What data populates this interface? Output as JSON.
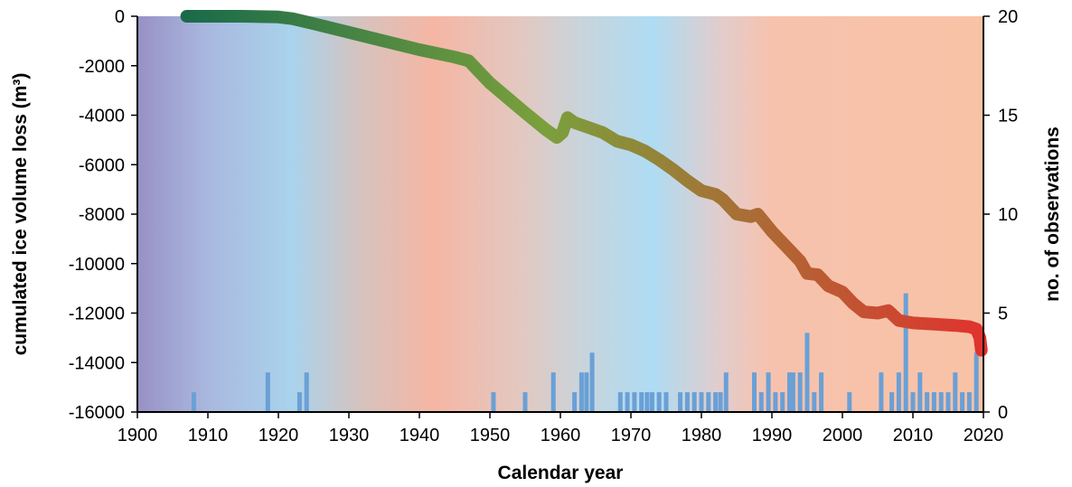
{
  "chart_data": {
    "type": "line",
    "title": "",
    "xlabel": "Calendar year",
    "ylabel": "cumulated ice volume loss (m³)",
    "y2label": "no. of observations",
    "xlim": [
      1900,
      2020
    ],
    "ylim": [
      -16000,
      0
    ],
    "y2lim": [
      0,
      20
    ],
    "xticks": [
      1900,
      1910,
      1920,
      1930,
      1940,
      1950,
      1960,
      1970,
      1980,
      1990,
      2000,
      2010,
      2020
    ],
    "yticks": [
      0,
      -2000,
      -4000,
      -6000,
      -8000,
      -10000,
      -12000,
      -14000,
      -16000
    ],
    "y2ticks": [
      0,
      5,
      10,
      15,
      20
    ],
    "grid": false,
    "legend": "none",
    "series": [
      {
        "kind": "line",
        "axis": "left",
        "x": [
          1907,
          1910,
          1915,
          1920,
          1922,
          1925,
          1930,
          1935,
          1940,
          1945,
          1947,
          1950,
          1955,
          1958,
          1959.5,
          1960.3,
          1961,
          1962,
          1964,
          1966,
          1968,
          1970,
          1972,
          1974,
          1976,
          1978,
          1980,
          1982,
          1983,
          1985,
          1987,
          1988,
          1990,
          1992,
          1994,
          1995,
          1996.5,
          1998,
          2000,
          2001.5,
          2003,
          2005,
          2006.5,
          2008,
          2010,
          2013,
          2016,
          2018,
          2019,
          2019.5,
          2019.7
        ],
        "y": [
          0,
          0,
          0,
          -30,
          -100,
          -300,
          -650,
          -1000,
          -1350,
          -1650,
          -1800,
          -2700,
          -3900,
          -4600,
          -4900,
          -4700,
          -4100,
          -4300,
          -4500,
          -4700,
          -5050,
          -5200,
          -5450,
          -5800,
          -6200,
          -6650,
          -7050,
          -7200,
          -7400,
          -8000,
          -8100,
          -8000,
          -8700,
          -9300,
          -9900,
          -10400,
          -10450,
          -10900,
          -11150,
          -11600,
          -11950,
          -12000,
          -11900,
          -12300,
          -12400,
          -12450,
          -12500,
          -12550,
          -12650,
          -13000,
          -13500
        ],
        "color_start": "#1a6b4a",
        "color_mid": "#7aa03c",
        "color_end": "#e0332e"
      },
      {
        "kind": "bar",
        "axis": "right",
        "color": "#6aa0d6",
        "x": [
          1908,
          1918.5,
          1923,
          1924,
          1950.5,
          1955,
          1959,
          1962,
          1963,
          1963.7,
          1964.5,
          1968.5,
          1969.5,
          1970.5,
          1971.5,
          1972.3,
          1973,
          1974,
          1975,
          1977,
          1978,
          1979,
          1980,
          1981,
          1982,
          1982.7,
          1983.5,
          1987.5,
          1988.5,
          1989.5,
          1990.5,
          1991.5,
          1992.5,
          1993,
          1994,
          1995,
          1996,
          1997,
          2001,
          2005.5,
          2007,
          2008,
          2009,
          2010,
          2011,
          2012,
          2013,
          2014,
          2015,
          2016,
          2017,
          2018,
          2019
        ],
        "values": [
          1,
          2,
          1,
          2,
          1,
          1,
          2,
          1,
          2,
          2,
          3,
          1,
          1,
          1,
          1,
          1,
          1,
          1,
          1,
          1,
          1,
          1,
          1,
          1,
          1,
          1,
          2,
          2,
          1,
          2,
          1,
          1,
          2,
          2,
          2,
          4,
          1,
          2,
          1,
          2,
          1,
          2,
          6,
          1,
          2,
          1,
          1,
          1,
          1,
          2,
          1,
          1,
          3
        ]
      }
    ],
    "background_bands": [
      {
        "x": 1900,
        "color": "#9891c4"
      },
      {
        "x": 1910,
        "color": "#a9b8df"
      },
      {
        "x": 1922,
        "color": "#a9d3ec"
      },
      {
        "x": 1932,
        "color": "#d7c2bd"
      },
      {
        "x": 1942,
        "color": "#f6b6a4"
      },
      {
        "x": 1955,
        "color": "#e1c9c2"
      },
      {
        "x": 1963,
        "color": "#c9d4dc"
      },
      {
        "x": 1973,
        "color": "#aedcf3"
      },
      {
        "x": 1983,
        "color": "#e3cccb"
      },
      {
        "x": 1990,
        "color": "#f7c2ad"
      },
      {
        "x": 2020,
        "color": "#f8c2a6"
      }
    ]
  }
}
